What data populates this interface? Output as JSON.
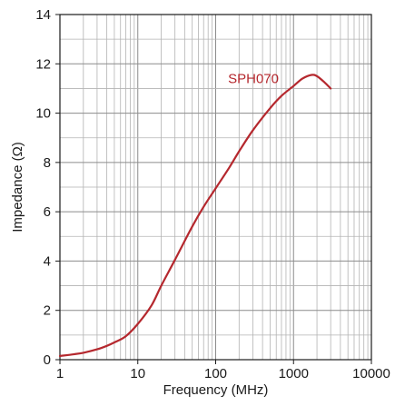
{
  "chart_data": {
    "type": "line",
    "xlabel": "Frequency (MHz)",
    "ylabel": "Impedance (Ω)",
    "xscale": "log",
    "xlim": [
      1,
      10000
    ],
    "ylim": [
      0,
      14
    ],
    "grid": true,
    "x_ticks": [
      {
        "value": 1,
        "label": "1"
      },
      {
        "value": 10,
        "label": "10"
      },
      {
        "value": 100,
        "label": "100"
      },
      {
        "value": 1000,
        "label": "1000"
      },
      {
        "value": 10000,
        "label": "10000"
      }
    ],
    "y_ticks": [
      {
        "value": 0,
        "label": "0"
      },
      {
        "value": 2,
        "label": "2"
      },
      {
        "value": 4,
        "label": "4"
      },
      {
        "value": 6,
        "label": "6"
      },
      {
        "value": 8,
        "label": "8"
      },
      {
        "value": 10,
        "label": "10"
      },
      {
        "value": 12,
        "label": "12"
      },
      {
        "value": 14,
        "label": "14"
      }
    ],
    "series": [
      {
        "name": "SPH070",
        "color": "#b5282e",
        "points": [
          {
            "x": 1,
            "y": 0.15
          },
          {
            "x": 1.5,
            "y": 0.22
          },
          {
            "x": 2,
            "y": 0.28
          },
          {
            "x": 3,
            "y": 0.42
          },
          {
            "x": 4,
            "y": 0.56
          },
          {
            "x": 5,
            "y": 0.7
          },
          {
            "x": 7,
            "y": 0.95
          },
          {
            "x": 10,
            "y": 1.45
          },
          {
            "x": 15,
            "y": 2.2
          },
          {
            "x": 20,
            "y": 3.0
          },
          {
            "x": 30,
            "y": 4.05
          },
          {
            "x": 50,
            "y": 5.4
          },
          {
            "x": 70,
            "y": 6.2
          },
          {
            "x": 100,
            "y": 6.95
          },
          {
            "x": 150,
            "y": 7.8
          },
          {
            "x": 200,
            "y": 8.45
          },
          {
            "x": 300,
            "y": 9.3
          },
          {
            "x": 500,
            "y": 10.2
          },
          {
            "x": 700,
            "y": 10.7
          },
          {
            "x": 1000,
            "y": 11.1
          },
          {
            "x": 1300,
            "y": 11.4
          },
          {
            "x": 1700,
            "y": 11.55
          },
          {
            "x": 2000,
            "y": 11.5
          },
          {
            "x": 2500,
            "y": 11.25
          },
          {
            "x": 3000,
            "y": 11.0
          }
        ]
      }
    ]
  }
}
